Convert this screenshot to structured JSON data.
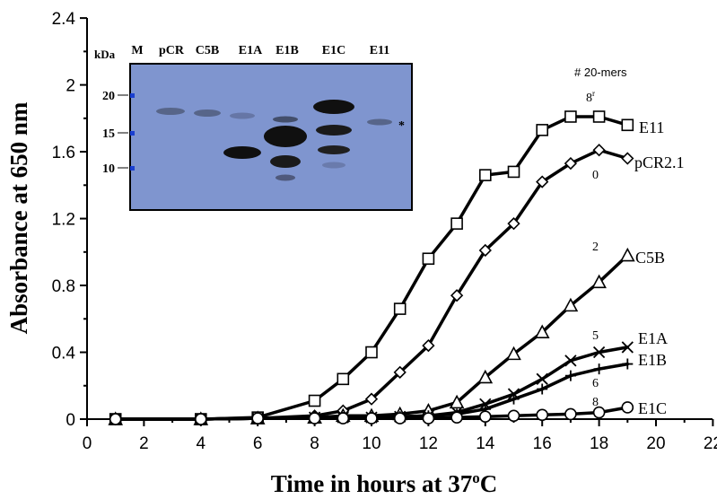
{
  "chart_data": {
    "type": "line",
    "xlabel": "Time in hours at 37",
    "xlabel_superscript": "o",
    "xlabel_suffix": "C",
    "ylabel": "Absorbance at 650 nm",
    "xlim": [
      0,
      22
    ],
    "ylim": [
      0,
      2.4
    ],
    "x_ticks": [
      "0",
      "2",
      "4",
      "6",
      "8",
      "10",
      "12",
      "14",
      "16",
      "18",
      "20",
      "22"
    ],
    "y_ticks": [
      "0",
      "0.4",
      "0.8",
      "1.2",
      "1.6",
      "2",
      "2.4"
    ],
    "legend_title": "# 20-mers",
    "series": [
      {
        "name": "E11",
        "count": "8",
        "count_suffix": "r",
        "marker": "square",
        "points": [
          [
            1,
            0
          ],
          [
            4,
            0
          ],
          [
            6,
            0.01
          ],
          [
            8,
            0.11
          ],
          [
            9,
            0.24
          ],
          [
            10,
            0.4
          ],
          [
            11,
            0.66
          ],
          [
            12,
            0.96
          ],
          [
            13,
            1.17
          ],
          [
            14,
            1.46
          ],
          [
            15,
            1.48
          ],
          [
            16,
            1.73
          ],
          [
            17,
            1.81
          ],
          [
            18,
            1.81
          ],
          [
            19,
            1.76
          ]
        ]
      },
      {
        "name": "pCR2.1",
        "count": "0",
        "marker": "diamond",
        "points": [
          [
            1,
            0
          ],
          [
            4,
            0
          ],
          [
            6,
            0.005
          ],
          [
            8,
            0.02
          ],
          [
            9,
            0.05
          ],
          [
            10,
            0.12
          ],
          [
            11,
            0.28
          ],
          [
            12,
            0.44
          ],
          [
            13,
            0.74
          ],
          [
            14,
            1.01
          ],
          [
            15,
            1.17
          ],
          [
            16,
            1.42
          ],
          [
            17,
            1.53
          ],
          [
            18,
            1.61
          ],
          [
            19,
            1.56
          ]
        ]
      },
      {
        "name": "C5B",
        "count": "2",
        "marker": "triangle",
        "points": [
          [
            1,
            0
          ],
          [
            4,
            0
          ],
          [
            6,
            0.005
          ],
          [
            8,
            0.01
          ],
          [
            9,
            0.02
          ],
          [
            10,
            0.02
          ],
          [
            11,
            0.03
          ],
          [
            12,
            0.05
          ],
          [
            13,
            0.1
          ],
          [
            14,
            0.25
          ],
          [
            15,
            0.39
          ],
          [
            16,
            0.52
          ],
          [
            17,
            0.68
          ],
          [
            18,
            0.82
          ],
          [
            19,
            0.98
          ]
        ]
      },
      {
        "name": "E1A",
        "count": "5",
        "marker": "x",
        "points": [
          [
            1,
            0
          ],
          [
            4,
            0
          ],
          [
            6,
            0.005
          ],
          [
            8,
            0.01
          ],
          [
            9,
            0.01
          ],
          [
            10,
            0.01
          ],
          [
            11,
            0.015
          ],
          [
            12,
            0.02
          ],
          [
            13,
            0.04
          ],
          [
            14,
            0.09
          ],
          [
            15,
            0.15
          ],
          [
            16,
            0.24
          ],
          [
            17,
            0.35
          ],
          [
            18,
            0.4
          ],
          [
            19,
            0.43
          ]
        ]
      },
      {
        "name": "E1B",
        "count": "6",
        "marker": "plus",
        "points": [
          [
            1,
            0
          ],
          [
            4,
            0
          ],
          [
            6,
            0.005
          ],
          [
            8,
            0.01
          ],
          [
            9,
            0.01
          ],
          [
            10,
            0.01
          ],
          [
            11,
            0.015
          ],
          [
            12,
            0.02
          ],
          [
            13,
            0.03
          ],
          [
            14,
            0.06
          ],
          [
            15,
            0.12
          ],
          [
            16,
            0.18
          ],
          [
            17,
            0.26
          ],
          [
            18,
            0.3
          ],
          [
            19,
            0.33
          ]
        ]
      },
      {
        "name": "E1C",
        "count": "8",
        "marker": "circle",
        "points": [
          [
            1,
            0
          ],
          [
            4,
            0
          ],
          [
            6,
            0.005
          ],
          [
            8,
            0.005
          ],
          [
            9,
            0.005
          ],
          [
            10,
            0.005
          ],
          [
            11,
            0.005
          ],
          [
            12,
            0.005
          ],
          [
            13,
            0.01
          ],
          [
            14,
            0.015
          ],
          [
            15,
            0.02
          ],
          [
            16,
            0.025
          ],
          [
            17,
            0.03
          ],
          [
            18,
            0.04
          ],
          [
            19,
            0.07
          ]
        ]
      }
    ]
  },
  "gel_inset": {
    "lane_labels": [
      "M",
      "pCR",
      "C5B",
      "E1A",
      "E1B",
      "E1C",
      "E11"
    ],
    "kda_title": "kDa",
    "kda_markers": [
      "20",
      "15",
      "10"
    ],
    "asterisk": "*",
    "background_color": "#7f95cf",
    "band_color": "#101010"
  }
}
